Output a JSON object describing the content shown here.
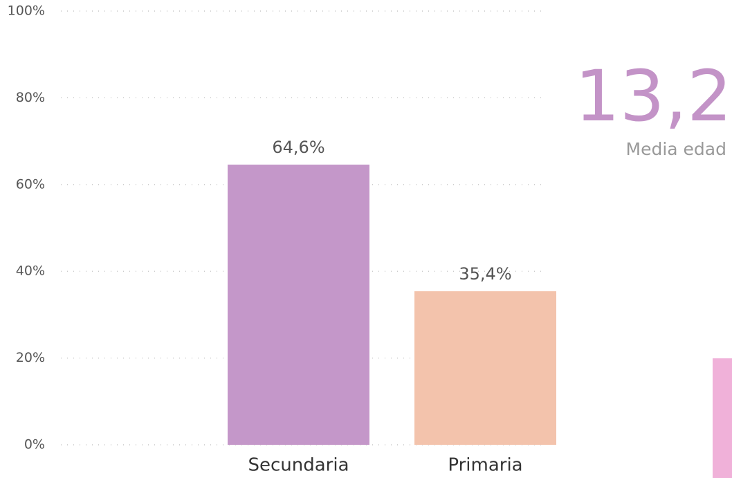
{
  "chart_data": {
    "type": "bar",
    "categories": [
      "Secundaria",
      "Primaria"
    ],
    "values": [
      64.6,
      35.4
    ],
    "value_labels": [
      "64,6%",
      "35,4%"
    ],
    "colors": [
      "#c497c9",
      "#f3c3ac"
    ],
    "ylim": [
      0,
      100
    ],
    "yticks": [
      {
        "value": 0,
        "label": "0%"
      },
      {
        "value": 20,
        "label": "20%"
      },
      {
        "value": 40,
        "label": "40%"
      },
      {
        "value": 60,
        "label": "60%"
      },
      {
        "value": 80,
        "label": "80%"
      },
      {
        "value": 100,
        "label": "100%"
      }
    ],
    "grid": true
  },
  "card": {
    "value": "13,2",
    "label": "Media edad"
  }
}
